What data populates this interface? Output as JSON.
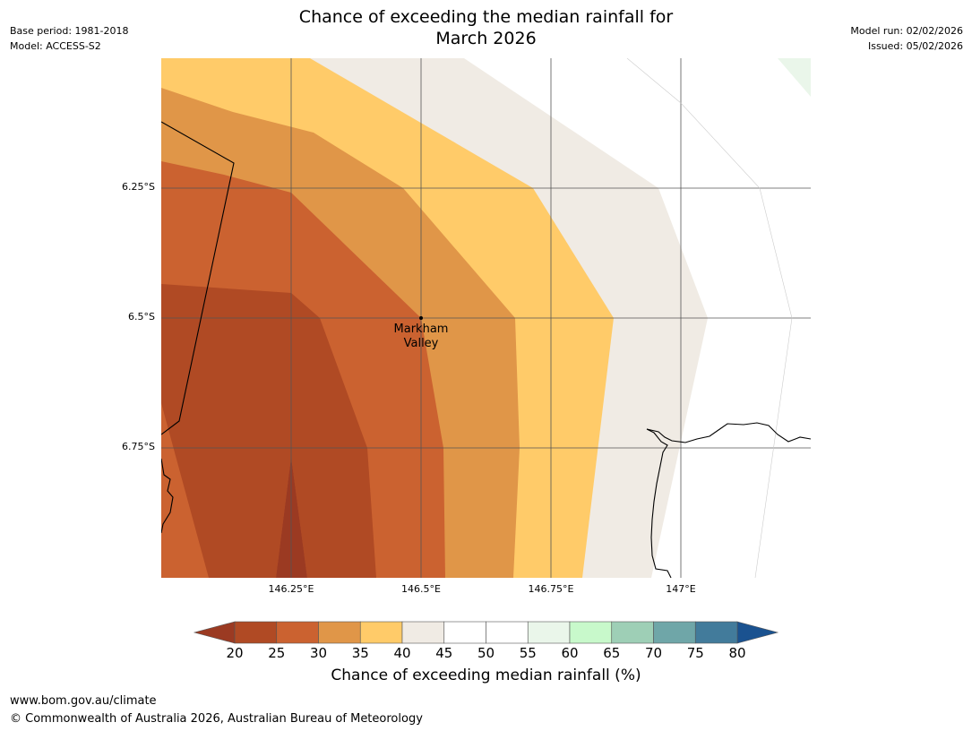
{
  "title": {
    "line1": "Chance of exceeding the median rainfall for",
    "line2": "March 2026"
  },
  "meta_left": {
    "base_period": "Base period: 1981-2018",
    "model": "Model: ACCESS-S2"
  },
  "meta_right": {
    "model_run": "Model run: 02/02/2026",
    "issued": "Issued: 05/02/2026"
  },
  "map": {
    "lat_labels": [
      "6.25°S",
      "6.5°S",
      "6.75°S"
    ],
    "lon_labels": [
      "146.25°E",
      "146.5°E",
      "146.75°E",
      "147°E"
    ],
    "place": {
      "name_line1": "Markham",
      "name_line2": "Valley"
    }
  },
  "colorbar": {
    "ticks": [
      "20",
      "25",
      "30",
      "35",
      "40",
      "45",
      "50",
      "55",
      "60",
      "65",
      "70",
      "75",
      "80"
    ],
    "colors": [
      "#9b3a22",
      "#b04a24",
      "#cb6230",
      "#e09648",
      "#ffcb69",
      "#f0ebe4",
      "#ffffff",
      "#ffffff",
      "#eaf6ea",
      "#c8f9cb",
      "#9ecfb6",
      "#6fa6a8",
      "#427b9b",
      "#1a5290"
    ],
    "label": "Chance of exceeding median rainfall (%)"
  },
  "footer": {
    "url": "www.bom.gov.au/climate",
    "copyright": "© Commonwealth of Australia 2026, Australian Bureau of Meteorology"
  }
}
